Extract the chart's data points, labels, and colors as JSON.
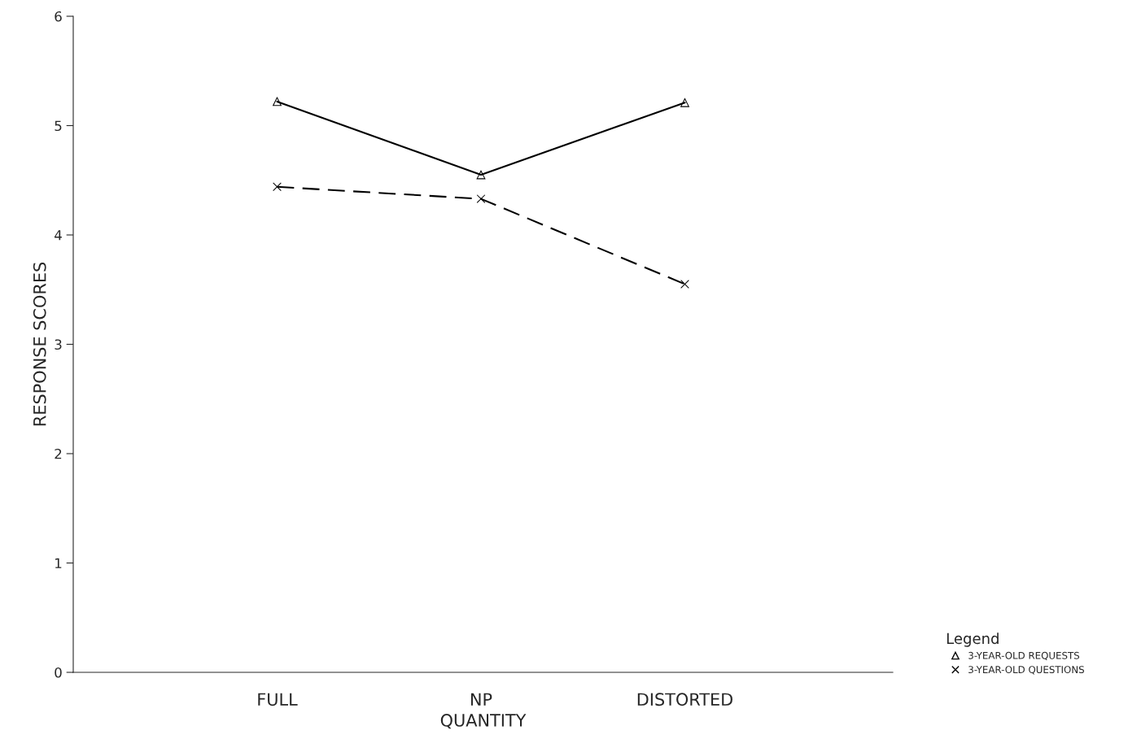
{
  "chart_data": {
    "type": "line",
    "xlabel": "QUANTITY",
    "ylabel": "RESPONSE SCORES",
    "legend_title": "Legend",
    "categories": [
      "FULL",
      "NP",
      "DISTORTED"
    ],
    "series": [
      {
        "name": "3-YEAR-OLD REQUESTS",
        "color": "#000000",
        "values": [
          5.22,
          4.55,
          5.21
        ],
        "marker": "triangle",
        "line_style": "solid"
      },
      {
        "name": "3-YEAR-OLD QUESTIONS",
        "color": "#000000",
        "values": [
          4.44,
          4.33,
          3.55
        ],
        "marker": "cross",
        "line_style": "dashed"
      }
    ],
    "ylim": [
      0,
      6
    ],
    "yticks": [
      0,
      1,
      2,
      3,
      4,
      5,
      6
    ],
    "grid": false,
    "legend": "bottom right"
  }
}
